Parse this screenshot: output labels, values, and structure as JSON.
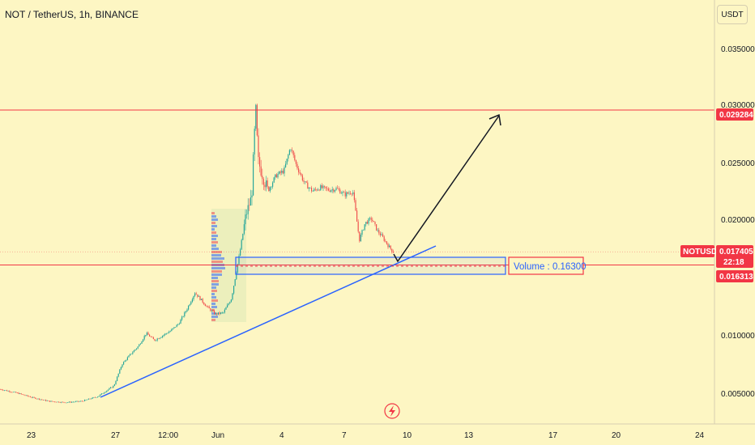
{
  "header": {
    "symbol_title": "NOT / TetherUS, 1h, BINANCE",
    "currency": "USDT"
  },
  "chart_data": {
    "type": "candlestick",
    "title": "NOT / TetherUS, 1h, BINANCE",
    "ylim": [
      0.003,
      0.0385
    ],
    "y_ticks": [
      "0.035000",
      "0.030000",
      "0.025000",
      "0.020000",
      "0.010000",
      "0.005000"
    ],
    "x_ticks": [
      "23",
      "27",
      "12:00",
      "Jun",
      "4",
      "7",
      "10",
      "13",
      "17",
      "20",
      "24"
    ],
    "horizontal_levels": [
      {
        "label": "",
        "value": 0.029284,
        "tag": "0.029284",
        "color": "#f23645"
      },
      {
        "label": "",
        "value": 0.016313,
        "tag": "0.016313",
        "color": "#f23645"
      }
    ],
    "current_price": {
      "symbol": "NOTUSDT",
      "value": "0.017405",
      "countdown": "22:18",
      "color": "#f23645"
    },
    "annotations": {
      "volume_label": "Volume : 0.16300"
    },
    "price_path": [
      [
        0,
        0.0059
      ],
      [
        20,
        0.0056
      ],
      [
        40,
        0.0052
      ],
      [
        60,
        0.0049
      ],
      [
        80,
        0.0048
      ],
      [
        100,
        0.0049
      ],
      [
        120,
        0.0053
      ],
      [
        140,
        0.0062
      ],
      [
        150,
        0.008
      ],
      [
        160,
        0.0088
      ],
      [
        170,
        0.0095
      ],
      [
        180,
        0.0106
      ],
      [
        190,
        0.01
      ],
      [
        200,
        0.0104
      ],
      [
        210,
        0.0108
      ],
      [
        220,
        0.0114
      ],
      [
        230,
        0.0126
      ],
      [
        240,
        0.014
      ],
      [
        250,
        0.0132
      ],
      [
        255,
        0.0128
      ],
      [
        265,
        0.0122
      ],
      [
        275,
        0.0123
      ],
      [
        285,
        0.0135
      ],
      [
        295,
        0.0172
      ],
      [
        303,
        0.0205
      ],
      [
        310,
        0.022
      ],
      [
        315,
        0.0294
      ],
      [
        318,
        0.025
      ],
      [
        323,
        0.024
      ],
      [
        330,
        0.0225
      ],
      [
        340,
        0.0238
      ],
      [
        350,
        0.0242
      ],
      [
        358,
        0.0262
      ],
      [
        365,
        0.0247
      ],
      [
        375,
        0.0232
      ],
      [
        385,
        0.0225
      ],
      [
        395,
        0.0228
      ],
      [
        405,
        0.0226
      ],
      [
        415,
        0.0227
      ],
      [
        425,
        0.0222
      ],
      [
        435,
        0.0225
      ],
      [
        443,
        0.0184
      ],
      [
        450,
        0.0198
      ],
      [
        458,
        0.0202
      ],
      [
        465,
        0.0192
      ],
      [
        472,
        0.0186
      ],
      [
        480,
        0.0178
      ],
      [
        485,
        0.0174
      ]
    ]
  }
}
